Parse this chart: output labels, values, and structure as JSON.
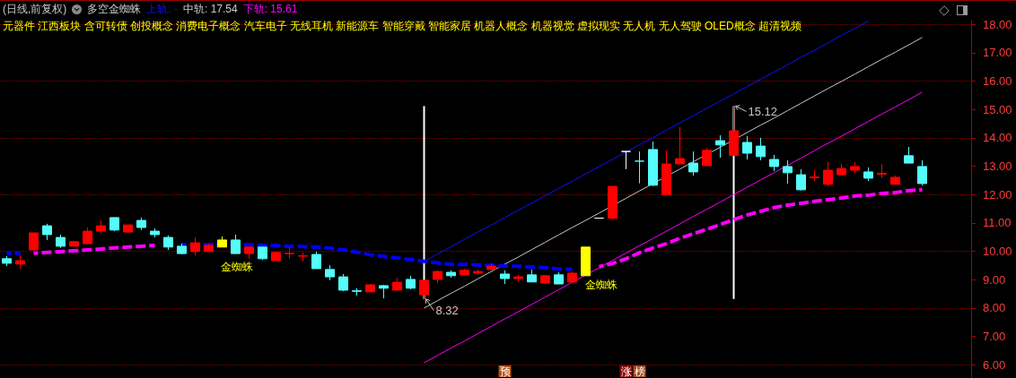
{
  "chart_data": {
    "type": "candlestick",
    "title": "(日线,前复权)",
    "subtitle": "多空金蜘蛛",
    "categories": [
      null,
      null,
      null,
      null,
      null,
      null,
      null,
      null,
      null,
      null,
      null,
      null,
      null,
      null,
      null,
      null,
      null,
      null,
      null,
      null,
      null,
      null,
      null,
      null,
      null,
      null,
      null,
      null,
      null,
      null,
      null,
      null,
      null,
      null,
      null,
      null,
      null,
      null,
      null,
      null,
      null,
      null,
      null,
      null,
      null,
      null,
      null,
      null,
      null,
      null,
      null,
      null,
      null,
      null,
      null,
      null,
      null,
      null,
      null,
      null,
      null,
      null,
      null,
      null,
      null,
      null,
      null,
      null,
      null
    ],
    "ohlc": [
      [
        9.74,
        9.83,
        9.48,
        9.58
      ],
      [
        9.55,
        9.86,
        9.39,
        9.67
      ],
      [
        10.05,
        10.65,
        10.0,
        10.65
      ],
      [
        10.9,
        10.97,
        10.4,
        10.59
      ],
      [
        10.49,
        10.59,
        10.12,
        10.18
      ],
      [
        10.18,
        10.37,
        10.18,
        10.34
      ],
      [
        10.27,
        10.84,
        10.24,
        10.71
      ],
      [
        10.71,
        11.09,
        10.62,
        10.9
      ],
      [
        11.19,
        11.19,
        10.71,
        10.75
      ],
      [
        10.68,
        10.93,
        10.65,
        10.93
      ],
      [
        11.09,
        11.19,
        10.75,
        10.84
      ],
      [
        10.71,
        10.81,
        10.49,
        10.59
      ],
      [
        10.49,
        10.56,
        10.05,
        10.15
      ],
      [
        10.18,
        10.27,
        9.89,
        9.92
      ],
      [
        9.99,
        10.49,
        9.86,
        10.3
      ],
      [
        9.99,
        10.27,
        9.99,
        10.21
      ],
      [
        10.15,
        10.52,
        10.15,
        10.4
      ],
      [
        10.4,
        10.59,
        9.92,
        9.92
      ],
      [
        9.92,
        10.15,
        9.74,
        10.15
      ],
      [
        10.15,
        10.15,
        9.7,
        9.74
      ],
      [
        9.67,
        9.99,
        9.67,
        9.96
      ],
      [
        9.92,
        10.15,
        9.74,
        9.93
      ],
      [
        9.83,
        9.96,
        9.64,
        9.84
      ],
      [
        9.89,
        9.99,
        9.39,
        9.39
      ],
      [
        9.36,
        9.51,
        8.98,
        9.1
      ],
      [
        9.1,
        9.2,
        8.6,
        8.63
      ],
      [
        8.61,
        8.7,
        8.44,
        8.59
      ],
      [
        8.57,
        8.85,
        8.57,
        8.82
      ],
      [
        8.79,
        8.82,
        8.34,
        8.7
      ],
      [
        8.63,
        9.07,
        8.6,
        8.91
      ],
      [
        9.01,
        9.14,
        8.66,
        8.7
      ],
      [
        8.47,
        8.98,
        8.32,
        8.98
      ],
      [
        9.01,
        9.33,
        8.88,
        9.29
      ],
      [
        9.26,
        9.33,
        9.07,
        9.14
      ],
      [
        9.17,
        9.39,
        9.14,
        9.33
      ],
      [
        9.23,
        9.36,
        9.17,
        9.29
      ],
      [
        9.36,
        9.58,
        9.33,
        9.48
      ],
      [
        9.2,
        9.33,
        8.85,
        9.04
      ],
      [
        9.04,
        9.17,
        8.92,
        9.1
      ],
      [
        9.17,
        9.36,
        8.92,
        8.92
      ],
      [
        8.88,
        9.17,
        8.85,
        9.14
      ],
      [
        9.17,
        9.26,
        8.85,
        8.85
      ],
      [
        8.92,
        9.29,
        8.92,
        9.23
      ],
      [
        9.14,
        10.15,
        9.14,
        10.15
      ],
      [
        11.17,
        11.17,
        11.17,
        11.17
      ],
      [
        11.17,
        12.29,
        11.13,
        12.29
      ],
      [
        13.52,
        13.52,
        12.9,
        13.52
      ],
      [
        13.18,
        13.52,
        12.4,
        13.18
      ],
      [
        13.59,
        13.87,
        12.3,
        12.33
      ],
      [
        12.0,
        13.56,
        12.0,
        13.08
      ],
      [
        13.08,
        14.38,
        13.08,
        13.27
      ],
      [
        13.11,
        13.52,
        12.67,
        12.8
      ],
      [
        13.02,
        13.65,
        13.02,
        13.56
      ],
      [
        13.9,
        14.09,
        13.3,
        13.75
      ],
      [
        13.38,
        15.12,
        13.38,
        14.25
      ],
      [
        13.84,
        14.06,
        13.24,
        13.46
      ],
      [
        13.71,
        14.0,
        13.21,
        13.34
      ],
      [
        13.24,
        13.4,
        12.83,
        12.99
      ],
      [
        12.99,
        13.21,
        12.39,
        12.77
      ],
      [
        12.7,
        12.89,
        12.14,
        12.17
      ],
      [
        12.6,
        12.86,
        12.48,
        12.62
      ],
      [
        12.36,
        13.15,
        12.29,
        12.86
      ],
      [
        12.7,
        13.08,
        12.7,
        12.92
      ],
      [
        12.86,
        13.15,
        12.77,
        12.99
      ],
      [
        12.8,
        12.96,
        12.48,
        12.58
      ],
      [
        12.72,
        13.08,
        12.58,
        12.75
      ],
      [
        12.36,
        12.67,
        12.36,
        12.61
      ],
      [
        13.37,
        13.68,
        13.11,
        13.11
      ],
      [
        12.99,
        13.21,
        12.32,
        12.39
      ]
    ],
    "colors": [
      "#54fcfc",
      "#ff0000",
      "#ff0000",
      "#54fcfc",
      "#54fcfc",
      "#ff0000",
      "#ff0000",
      "#ff0000",
      "#54fcfc",
      "#ff0000",
      "#54fcfc",
      "#54fcfc",
      "#54fcfc",
      "#54fcfc",
      "#ff0000",
      "#ff0000",
      "#ffff00",
      "#54fcfc",
      "#ff0000",
      "#54fcfc",
      "#ff0000",
      "#ff0000",
      "#ff0000",
      "#54fcfc",
      "#54fcfc",
      "#54fcfc",
      "#54fcfc",
      "#ff0000",
      "#54fcfc",
      "#ff0000",
      "#54fcfc",
      "#ff0000",
      "#ff0000",
      "#54fcfc",
      "#ff0000",
      "#ff0000",
      "#ff0000",
      "#54fcfc",
      "#ff0000",
      "#54fcfc",
      "#ff0000",
      "#54fcfc",
      "#ff0000",
      "#ffff00",
      "#ffffff",
      "#ff0000",
      "#ffffff",
      "#54fcfc",
      "#54fcfc",
      "#ff0000",
      "#ff0000",
      "#54fcfc",
      "#ff0000",
      "#54fcfc",
      "#ff0000",
      "#54fcfc",
      "#54fcfc",
      "#54fcfc",
      "#54fcfc",
      "#54fcfc",
      "#ff0000",
      "#ff0000",
      "#ff0000",
      "#ff0000",
      "#54fcfc",
      "#ff0000",
      "#ff0000",
      "#54fcfc",
      "#54fcfc"
    ],
    "series": [
      {
        "name": "上轨: -",
        "type": "line",
        "color": "#1010ff",
        "values": [
          null,
          null,
          null,
          null,
          null,
          null,
          null,
          null,
          null,
          null,
          null,
          null,
          null,
          null,
          null,
          null,
          null,
          null,
          null,
          null,
          null,
          null,
          null,
          null,
          null,
          null,
          null,
          null,
          null,
          null,
          null,
          9.65,
          9.91,
          10.16,
          10.42,
          10.68,
          10.93,
          11.19,
          11.45,
          11.7,
          11.96,
          12.22,
          12.47,
          12.73,
          12.99,
          13.24,
          13.5,
          13.76,
          14.01,
          14.27,
          14.53,
          14.78,
          15.04,
          15.3,
          15.55,
          15.81,
          16.07,
          16.32,
          16.58,
          16.84,
          17.09,
          17.35,
          17.61,
          17.86,
          18.12,
          null,
          null,
          null,
          null
        ]
      },
      {
        "name": "中轨: 17.54",
        "type": "line",
        "color": "#c8c8c8",
        "values": [
          null,
          null,
          null,
          null,
          null,
          null,
          null,
          null,
          null,
          null,
          null,
          null,
          null,
          null,
          null,
          null,
          null,
          null,
          null,
          null,
          null,
          null,
          null,
          null,
          null,
          null,
          null,
          null,
          null,
          null,
          null,
          8.0,
          8.26,
          8.52,
          8.77,
          9.03,
          9.29,
          9.55,
          9.8,
          10.06,
          10.32,
          10.58,
          10.84,
          11.09,
          11.35,
          null,
          11.87,
          12.13,
          null,
          null,
          12.9,
          13.16,
          null,
          13.67,
          null,
          14.19,
          14.45,
          14.7,
          14.96,
          15.22,
          15.48,
          15.74,
          15.99,
          16.25,
          16.51,
          16.77,
          17.02,
          17.28,
          17.54
        ]
      },
      {
        "name": "下轨: 15.61",
        "type": "line",
        "color": "#ff00ff",
        "values": [
          null,
          null,
          null,
          null,
          null,
          null,
          null,
          null,
          null,
          null,
          null,
          null,
          null,
          null,
          null,
          null,
          null,
          null,
          null,
          null,
          null,
          null,
          null,
          null,
          null,
          null,
          null,
          null,
          null,
          null,
          null,
          6.07,
          6.33,
          6.59,
          6.84,
          7.1,
          7.36,
          7.62,
          7.87,
          8.13,
          8.39,
          8.65,
          8.91,
          null,
          9.42,
          9.68,
          9.94,
          10.2,
          10.45,
          10.71,
          10.97,
          11.23,
          11.48,
          11.74,
          12.0,
          12.26,
          12.52,
          12.77,
          13.03,
          13.29,
          13.55,
          13.81,
          14.06,
          14.32,
          14.58,
          14.84,
          15.09,
          15.35,
          15.61
        ]
      },
      {
        "type": "line",
        "color": "#0000ff",
        "line_style": "dashed",
        "values": [
          9.93,
          9.93,
          null,
          null,
          null,
          null,
          null,
          null,
          null,
          null,
          null,
          null,
          null,
          null,
          null,
          null,
          null,
          null,
          null,
          null,
          null,
          null,
          null,
          null,
          null,
          null,
          null,
          null,
          null,
          null,
          null,
          null,
          null,
          null,
          null,
          null,
          null,
          null,
          null,
          null,
          null,
          null,
          null,
          null,
          null,
          null,
          null,
          null,
          null,
          null,
          null,
          null,
          null,
          null,
          null,
          null,
          null,
          null,
          null,
          null,
          null,
          null,
          null,
          null,
          null,
          null,
          null,
          null,
          null
        ]
      },
      {
        "type": "line",
        "color": "#0000ff",
        "line_style": "dashed",
        "values": [
          null,
          null,
          null,
          null,
          null,
          null,
          null,
          null,
          null,
          null,
          null,
          null,
          null,
          10.23,
          null,
          10.23,
          null,
          null,
          10.23,
          10.21,
          10.2,
          10.18,
          10.17,
          10.15,
          10.11,
          10.05,
          9.97,
          9.88,
          9.82,
          9.77,
          9.71,
          9.65,
          9.59,
          9.54,
          9.54,
          9.52,
          9.5,
          9.48,
          9.47,
          9.45,
          9.42,
          9.38,
          9.37,
          null,
          null,
          null,
          null,
          null,
          null,
          null,
          null,
          null,
          null,
          null,
          null,
          null,
          null,
          null,
          null,
          null,
          null,
          null,
          null,
          null,
          null,
          null,
          null,
          null,
          null
        ]
      },
      {
        "type": "line",
        "color": "#ff00ff",
        "line_style": "dashed",
        "values": [
          null,
          null,
          9.93,
          9.96,
          9.99,
          10.02,
          10.05,
          10.08,
          10.12,
          10.15,
          10.18,
          10.21,
          null,
          null,
          null,
          null,
          null,
          null,
          null,
          null,
          null,
          null,
          null,
          null,
          null,
          null,
          null,
          null,
          null,
          null,
          null,
          null,
          null,
          null,
          null,
          null,
          null,
          null,
          null,
          null,
          null,
          null,
          null,
          null,
          null,
          null,
          null,
          null,
          null,
          null,
          null,
          null,
          null,
          null,
          null,
          null,
          null,
          null,
          null,
          null,
          null,
          null,
          null,
          null,
          null,
          null,
          null,
          null,
          null
        ]
      },
      {
        "type": "line",
        "color": "#ff00ff",
        "line_style": "dashed",
        "values": [
          null,
          null,
          null,
          null,
          null,
          null,
          null,
          null,
          null,
          null,
          null,
          null,
          null,
          null,
          null,
          null,
          null,
          null,
          null,
          null,
          null,
          null,
          null,
          null,
          null,
          null,
          null,
          null,
          null,
          null,
          null,
          null,
          null,
          null,
          null,
          null,
          null,
          null,
          null,
          null,
          null,
          null,
          null,
          null,
          9.46,
          9.57,
          9.74,
          9.95,
          10.12,
          10.27,
          10.46,
          10.62,
          10.78,
          10.94,
          11.12,
          11.28,
          11.41,
          11.54,
          11.63,
          11.69,
          11.76,
          11.82,
          11.88,
          11.95,
          11.98,
          12.04,
          12.07,
          12.14,
          12.17
        ]
      },
      {
        "type": "bar",
        "color": "#ffffff",
        "values": [
          null,
          null,
          null,
          null,
          null,
          null,
          null,
          null,
          null,
          null,
          null,
          null,
          null,
          null,
          null,
          null,
          null,
          null,
          null,
          null,
          null,
          null,
          null,
          null,
          null,
          null,
          null,
          null,
          null,
          null,
          null,
          6.8,
          null,
          null,
          null,
          null,
          null,
          null,
          null,
          null,
          null,
          null,
          null,
          null,
          null,
          null,
          null,
          null,
          null,
          null,
          null,
          null,
          null,
          null,
          6.8,
          null,
          null,
          null,
          null,
          null,
          null,
          null,
          null,
          null,
          null,
          null,
          null,
          null,
          null
        ],
        "base": [
          null,
          null,
          null,
          null,
          null,
          null,
          null,
          null,
          null,
          null,
          null,
          null,
          null,
          null,
          null,
          null,
          null,
          null,
          null,
          null,
          null,
          null,
          null,
          null,
          null,
          null,
          null,
          null,
          null,
          null,
          null,
          8.32,
          null,
          null,
          null,
          null,
          null,
          null,
          null,
          null,
          null,
          null,
          null,
          null,
          null,
          null,
          null,
          null,
          null,
          null,
          null,
          null,
          null,
          null,
          8.32,
          null,
          null,
          null,
          null,
          null,
          null,
          null,
          null,
          null,
          null,
          null,
          null,
          null,
          null
        ]
      }
    ],
    "ylim": [
      5.55,
      18.15
    ],
    "yticks": [
      {
        "value": 6,
        "label": "6.00"
      },
      {
        "value": 7,
        "label": "7.00"
      },
      {
        "value": 8,
        "label": "8.00"
      },
      {
        "value": 9,
        "label": "9.00"
      },
      {
        "value": 10,
        "label": "10.00"
      },
      {
        "value": 11,
        "label": "11.00"
      },
      {
        "value": 12,
        "label": "12.00"
      },
      {
        "value": 13,
        "label": "13.00"
      },
      {
        "value": 14,
        "label": "14.00"
      },
      {
        "value": 15,
        "label": "15.00"
      },
      {
        "value": 16,
        "label": "16.00"
      },
      {
        "value": 17,
        "label": "17.00"
      },
      {
        "value": 18,
        "label": "18.00"
      }
    ],
    "grid": "y",
    "tick_labels": "y",
    "annotations": [
      "元器件 江西板块 含可转债 创投概念 消费电子概念 汽车电子 无线耳机 新能源车 智能穿戴 智能家居 机器人概念 机器视觉 虚拟现实 无人机 无人驾驶 OLED概念 超清视频",
      "8.32",
      "15.12",
      "金蜘蛛",
      "金蜘蛛",
      "预",
      "涨",
      "榜"
    ]
  }
}
